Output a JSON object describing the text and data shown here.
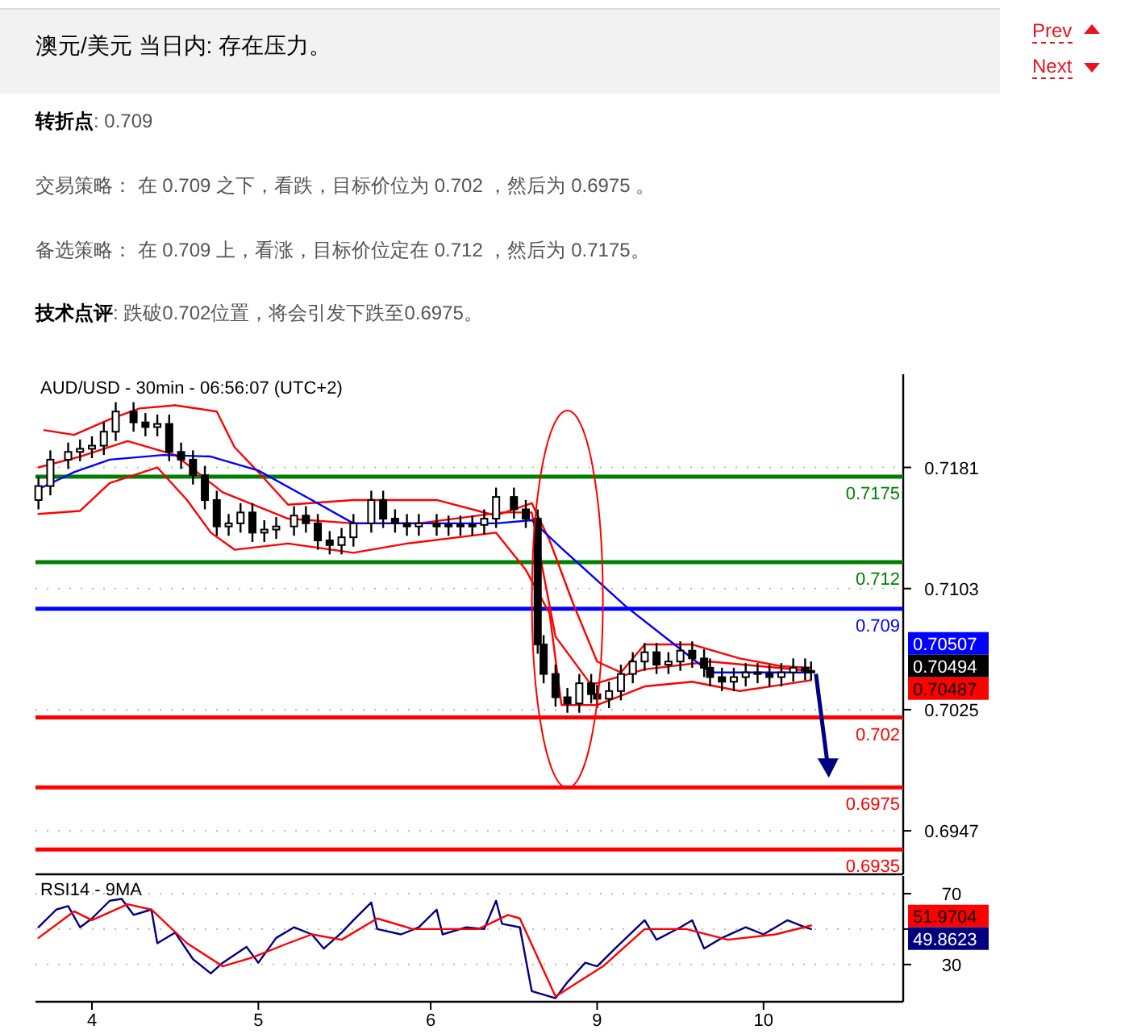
{
  "chart_data": [
    {
      "type": "other",
      "title": "澳元/美元 当日内: 存在压力。",
      "annotations": [
        "**转折点**: 0.709",
        "交易策略： 在 0.709 之下，看跌，目标价位为 0.702 ，然后为 0.6975 。",
        "备选策略： 在 0.709 上，看涨，目标价位定在 0.712 ，然后为 0.7175。",
        "**技术点评**: 跌破0.702位置，将会引发下跌至0.6975。",
        "Prev",
        "Next"
      ]
    },
    {
      "type": "candlestick",
      "title": "AUD/USD - 30min - 06:56:07 (UTC+2)",
      "categories": [
        null,
        null,
        null,
        null,
        null,
        null,
        null,
        null,
        null,
        null,
        null,
        null,
        null,
        null,
        null,
        null,
        null,
        null,
        null,
        null,
        null,
        null,
        null,
        null,
        null,
        null,
        null,
        null,
        null,
        null,
        null,
        null,
        null,
        null,
        null,
        null,
        null,
        null,
        null,
        null,
        null,
        null,
        null,
        null,
        null,
        null,
        null,
        null,
        null,
        null,
        null,
        null,
        null,
        null,
        null,
        null,
        null,
        null,
        null,
        null,
        null,
        null,
        null,
        null,
        null,
        null,
        null,
        null,
        null,
        null,
        null,
        null,
        null,
        null,
        null,
        null,
        null,
        null,
        null,
        null,
        null,
        null,
        null,
        null,
        null,
        null,
        null,
        null,
        null,
        null,
        null,
        null,
        null,
        null,
        null,
        null,
        null,
        null,
        null,
        null,
        null,
        null,
        null,
        null,
        null,
        null,
        null,
        null,
        null,
        null,
        null,
        null,
        null,
        null,
        null,
        null,
        null,
        null,
        null,
        null,
        null,
        null,
        null,
        null,
        null,
        null,
        null,
        null,
        null,
        null,
        null,
        null,
        null,
        null,
        null,
        null,
        null,
        null,
        null,
        null,
        null,
        null,
        null,
        null,
        null,
        null
      ],
      "ohlc": [
        [
          0.716,
          0.7175,
          0.7154,
          0.7169
        ],
        null,
        [
          0.7169,
          0.7192,
          0.7163,
          0.7186
        ],
        null,
        null,
        [
          0.7186,
          0.7197,
          0.718,
          0.7191
        ],
        null,
        [
          0.7191,
          0.7199,
          0.7185,
          0.7193
        ],
        null,
        [
          0.7193,
          0.7201,
          0.7187,
          0.7195
        ],
        null,
        [
          0.7195,
          0.721,
          0.7189,
          0.7204
        ],
        null,
        [
          0.7204,
          0.7223,
          0.7198,
          0.7217
        ],
        null,
        null,
        [
          0.7217,
          0.7223,
          0.7204,
          0.721
        ],
        null,
        [
          0.721,
          0.7216,
          0.7201,
          0.7207
        ],
        null,
        [
          0.7207,
          0.7215,
          0.7201,
          0.7209
        ],
        null,
        [
          0.7209,
          0.7215,
          0.7185,
          0.7191
        ],
        null,
        [
          0.7191,
          0.7197,
          0.718,
          0.7186
        ],
        null,
        [
          0.7186,
          0.7192,
          0.717,
          0.7176
        ],
        null,
        [
          0.7176,
          0.7182,
          0.7154,
          0.716
        ],
        null,
        [
          0.716,
          0.7166,
          0.7137,
          0.7143
        ],
        null,
        [
          0.7143,
          0.7151,
          0.7137,
          0.7145
        ],
        null,
        [
          0.7145,
          0.7158,
          0.7139,
          0.7152
        ],
        null,
        [
          0.7152,
          0.7158,
          0.7133,
          0.7139
        ],
        null,
        [
          0.7139,
          0.7147,
          0.7133,
          0.7141
        ],
        null,
        [
          0.7141,
          0.7149,
          0.7135,
          0.7143
        ],
        null,
        null,
        [
          0.7143,
          0.7156,
          0.7137,
          0.715
        ],
        null,
        [
          0.715,
          0.7156,
          0.7139,
          0.7145
        ],
        null,
        [
          0.7145,
          0.7151,
          0.7128,
          0.7134
        ],
        null,
        [
          0.7134,
          0.714,
          0.7125,
          0.7131
        ],
        null,
        [
          0.7131,
          0.7142,
          0.7125,
          0.7136
        ],
        null,
        [
          0.7136,
          0.7151,
          0.713,
          0.7145
        ],
        null,
        null,
        [
          0.7145,
          0.7166,
          0.7139,
          0.716
        ],
        null,
        [
          0.716,
          0.7166,
          0.7142,
          0.7148
        ],
        null,
        [
          0.7148,
          0.7154,
          0.7139,
          0.7145
        ],
        null,
        [
          0.7145,
          0.7151,
          0.7137,
          0.7143
        ],
        null,
        [
          0.7143,
          0.7151,
          0.7137,
          0.7145
        ],
        null,
        null,
        [
          0.7145,
          0.7151,
          0.7137,
          0.7143
        ],
        null,
        [
          0.7143,
          0.715,
          0.7137,
          0.7144
        ],
        null,
        [
          0.7144,
          0.715,
          0.7137,
          0.7143
        ],
        null,
        [
          0.7143,
          0.715,
          0.7137,
          0.7144
        ],
        null,
        [
          0.7144,
          0.7154,
          0.7138,
          0.7148
        ],
        null,
        [
          0.7148,
          0.7168,
          0.7142,
          0.7162
        ],
        null,
        null,
        [
          0.7162,
          0.7168,
          0.7148,
          0.7154
        ],
        null,
        [
          0.7154,
          0.716,
          0.7142,
          0.7148
        ],
        null,
        [
          0.7148,
          0.7154,
          0.7061,
          0.7067
        ],
        [
          0.7067,
          0.7073,
          0.7042,
          0.7048
        ],
        null,
        [
          0.7048,
          0.7054,
          0.7027,
          0.7033
        ],
        null,
        [
          0.7033,
          0.7039,
          0.7023,
          0.7029
        ],
        null,
        [
          0.7029,
          0.7048,
          0.7023,
          0.7042
        ],
        null,
        [
          0.7042,
          0.7048,
          0.7029,
          0.7035
        ],
        [
          0.7035,
          0.7041,
          0.7026,
          0.7032
        ],
        null,
        [
          0.7032,
          0.7043,
          0.7026,
          0.7037
        ],
        null,
        [
          0.7037,
          0.7054,
          0.7031,
          0.7048
        ],
        null,
        [
          0.7048,
          0.7062,
          0.7042,
          0.7056
        ],
        null,
        [
          0.7056,
          0.7068,
          0.705,
          0.7062
        ],
        null,
        [
          0.7062,
          0.7068,
          0.7048,
          0.7054
        ],
        null,
        [
          0.7054,
          0.7062,
          0.7048,
          0.7056
        ],
        null,
        [
          0.7056,
          0.7069,
          0.705,
          0.7063
        ],
        null,
        [
          0.7063,
          0.7069,
          0.7052,
          0.7058
        ],
        null,
        [
          0.7058,
          0.7064,
          0.7046,
          0.7052
        ],
        [
          0.7052,
          0.7058,
          0.704,
          0.7046
        ],
        null,
        [
          0.7046,
          0.7052,
          0.7037,
          0.7043
        ],
        null,
        [
          0.7043,
          0.7052,
          0.7037,
          0.7046
        ],
        null,
        [
          0.7046,
          0.7055,
          0.704,
          0.7049
        ],
        null,
        [
          0.7049,
          0.7055,
          0.7042,
          0.7048
        ],
        null,
        [
          0.7048,
          0.7054,
          0.704,
          0.7046
        ],
        null,
        [
          0.7046,
          0.7055,
          0.704,
          0.7049
        ],
        null,
        [
          0.7049,
          0.7058,
          0.7043,
          0.7052
        ],
        null,
        [
          0.7052,
          0.7058,
          0.7044,
          0.705
        ],
        [
          0.705,
          0.7056,
          0.7044,
          0.7049
        ],
        null,
        null,
        null,
        null,
        null,
        null,
        null,
        null,
        null,
        null,
        null,
        null,
        null,
        null,
        null
      ],
      "series": [
        {
          "type": "line",
          "color": "#ff0000",
          "values": [
            null,
            0.7205,
            null,
            null,
            null,
            null,
            0.7202,
            null,
            null,
            null,
            null,
            null,
            0.7212,
            null,
            null,
            null,
            null,
            0.7219,
            null,
            null,
            null,
            null,
            null,
            0.7221,
            null,
            null,
            null,
            null,
            null,
            null,
            0.7217,
            null,
            null,
            0.7194,
            null,
            null,
            null,
            0.7178,
            null,
            null,
            null,
            null,
            0.7157,
            null,
            null,
            null,
            null,
            null,
            null,
            null,
            null,
            null,
            null,
            0.716,
            null,
            null,
            null,
            null,
            null,
            null,
            null,
            null,
            null,
            null,
            null,
            null,
            null,
            0.716,
            null,
            null,
            null,
            null,
            null,
            null,
            null,
            null,
            null,
            0.715,
            null,
            null,
            null,
            null,
            null,
            0.7158,
            null,
            null,
            0.7134,
            null,
            null,
            null,
            0.7093,
            null,
            null,
            null,
            0.7056,
            null,
            null,
            null,
            0.7049,
            null,
            null,
            null,
            0.7067,
            null,
            null,
            null,
            null,
            null,
            null,
            null,
            0.7067,
            null,
            null,
            null,
            null,
            null,
            null,
            null,
            0.7058,
            null,
            null,
            null,
            null,
            null,
            null,
            0.7053,
            null,
            null,
            null,
            null,
            0.7052,
            null,
            null,
            null,
            null,
            null,
            null,
            null,
            null,
            null,
            null,
            null,
            null,
            null,
            null,
            null
          ]
        },
        {
          "type": "line",
          "color": "#ff0000",
          "values": [
            0.7151,
            null,
            null,
            null,
            null,
            null,
            null,
            0.7153,
            null,
            null,
            null,
            null,
            0.7171,
            null,
            null,
            null,
            null,
            null,
            null,
            null,
            0.7181,
            null,
            null,
            null,
            null,
            0.716,
            null,
            null,
            null,
            0.7139,
            null,
            null,
            null,
            0.7128,
            null,
            null,
            null,
            null,
            null,
            null,
            null,
            null,
            0.7132,
            null,
            null,
            null,
            null,
            null,
            null,
            null,
            null,
            null,
            null,
            0.7126,
            null,
            null,
            null,
            null,
            null,
            null,
            null,
            null,
            0.7132,
            null,
            null,
            null,
            null,
            null,
            null,
            null,
            null,
            null,
            null,
            null,
            null,
            null,
            null,
            0.7139,
            null,
            null,
            null,
            null,
            0.7115,
            null,
            null,
            null,
            0.7087,
            null,
            0.7028,
            null,
            null,
            null,
            null,
            null,
            0.7028,
            null,
            null,
            null,
            null,
            null,
            null,
            null,
            0.704,
            null,
            null,
            null,
            null,
            null,
            null,
            null,
            0.7043,
            null,
            null,
            null,
            null,
            null,
            null,
            null,
            0.7037,
            null,
            null,
            null,
            null,
            null,
            null,
            0.7041,
            null,
            null,
            null,
            null,
            0.7044,
            null,
            null,
            null,
            null,
            null,
            null,
            null,
            null,
            null,
            null,
            null,
            null,
            null,
            null,
            null
          ]
        },
        {
          "type": "line",
          "color": "#ff0000",
          "values": [
            0.7181,
            null,
            null,
            null,
            null,
            null,
            null,
            0.7188,
            null,
            null,
            null,
            null,
            null,
            null,
            null,
            0.7198,
            null,
            null,
            null,
            null,
            null,
            null,
            null,
            0.7189,
            null,
            null,
            null,
            null,
            null,
            null,
            null,
            0.7165,
            null,
            null,
            null,
            null,
            null,
            null,
            null,
            null,
            null,
            null,
            0.7148,
            null,
            null,
            null,
            null,
            null,
            null,
            null,
            null,
            null,
            null,
            0.7145,
            null,
            null,
            null,
            null,
            null,
            null,
            null,
            null,
            null,
            null,
            0.7145,
            null,
            null,
            null,
            null,
            null,
            null,
            null,
            null,
            null,
            null,
            null,
            null,
            null,
            0.7152,
            null,
            null,
            null,
            null,
            0.7152,
            null,
            null,
            null,
            0.7072,
            null,
            null,
            null,
            null,
            null,
            0.7041,
            null,
            null,
            null,
            null,
            null,
            null,
            null,
            null,
            0.7051,
            null,
            null,
            null,
            null,
            null,
            null,
            null,
            null,
            null,
            null,
            0.7056,
            null,
            null,
            null,
            null,
            null,
            null,
            null,
            null,
            null,
            null,
            null,
            null,
            null,
            null,
            null,
            null,
            0.705,
            null,
            null,
            null,
            null,
            null,
            null,
            null,
            null,
            null,
            null,
            null,
            null,
            null,
            null,
            null
          ]
        },
        {
          "type": "line",
          "color": "#0000ff",
          "values": [
            0.7167,
            null,
            null,
            null,
            null,
            null,
            0.7178,
            null,
            null,
            null,
            null,
            null,
            0.7186,
            null,
            null,
            null,
            null,
            null,
            null,
            null,
            null,
            0.7189,
            null,
            null,
            null,
            null,
            null,
            null,
            null,
            0.7188,
            null,
            null,
            null,
            null,
            null,
            null,
            null,
            0.7179,
            null,
            null,
            null,
            null,
            null,
            null,
            null,
            null,
            0.716,
            null,
            null,
            null,
            null,
            null,
            null,
            0.7145,
            null,
            null,
            null,
            null,
            null,
            null,
            null,
            null,
            0.7145,
            null,
            null,
            null,
            null,
            null,
            null,
            null,
            null,
            null,
            null,
            null,
            null,
            null,
            null,
            0.7145,
            null,
            null,
            null,
            null,
            null,
            0.7147,
            null,
            null,
            null,
            null,
            0.7129,
            null,
            null,
            null,
            null,
            null,
            null,
            null,
            null,
            null,
            null,
            0.7091,
            null,
            null,
            null,
            null,
            null,
            null,
            null,
            0.7067,
            null,
            null,
            null,
            null,
            null,
            0.7049,
            null,
            null,
            null,
            null,
            null,
            null,
            null,
            null,
            null,
            null,
            null,
            null,
            null,
            null,
            null,
            null,
            0.7049,
            null,
            null,
            null,
            null,
            null,
            null,
            null,
            null,
            null,
            null,
            null,
            null,
            null,
            null,
            null
          ]
        }
      ],
      "ylim": [
        0.6919,
        0.7241
      ],
      "yticks": [
        0.7181,
        0.7103,
        0.7025,
        0.6947
      ],
      "grid": "y",
      "tick_labels": "y",
      "ref_lines": [
        {
          "axis": "y",
          "value": 0.7175,
          "label": "0.7175",
          "color": "#008000"
        },
        {
          "axis": "y",
          "value": 0.712,
          "label": "0.712",
          "color": "#008000"
        },
        {
          "axis": "y",
          "value": 0.709,
          "label": "0.709",
          "color": "#0000ff"
        },
        {
          "axis": "y",
          "value": 0.702,
          "label": "0.702",
          "color": "#ff0000"
        },
        {
          "axis": "y",
          "value": 0.6975,
          "label": "0.6975",
          "color": "#ff0000"
        },
        {
          "axis": "y",
          "value": 0.6935,
          "label": "0.6935",
          "color": "#ff0000"
        }
      ],
      "annotations": [
        "0.70507",
        "0.70494",
        "0.70487"
      ]
    },
    {
      "type": "line",
      "title": "RSI14 - 9MA",
      "categories": [
        null,
        null,
        null,
        null,
        null,
        null,
        null,
        null,
        null,
        "4",
        null,
        null,
        null,
        null,
        null,
        null,
        null,
        null,
        null,
        null,
        null,
        null,
        null,
        null,
        null,
        null,
        null,
        null,
        null,
        null,
        null,
        null,
        null,
        null,
        null,
        null,
        null,
        "5",
        null,
        null,
        null,
        null,
        null,
        null,
        null,
        null,
        null,
        null,
        null,
        null,
        null,
        null,
        null,
        null,
        null,
        null,
        null,
        null,
        null,
        null,
        null,
        null,
        null,
        null,
        null,
        null,
        "6",
        null,
        null,
        null,
        null,
        null,
        null,
        null,
        null,
        null,
        null,
        null,
        null,
        null,
        null,
        null,
        null,
        null,
        null,
        null,
        null,
        null,
        null,
        null,
        null,
        null,
        null,
        null,
        "9",
        null,
        null,
        null,
        null,
        null,
        null,
        null,
        null,
        null,
        null,
        null,
        null,
        null,
        null,
        null,
        null,
        null,
        null,
        null,
        null,
        null,
        null,
        null,
        null,
        null,
        null,
        null,
        "10",
        null,
        null,
        null,
        null,
        null,
        null,
        null,
        null,
        null,
        null,
        null,
        null,
        null,
        null,
        null,
        null,
        null,
        null,
        null,
        null,
        null,
        null,
        null
      ],
      "series": [
        {
          "color": "#000080",
          "values": [
            51,
            null,
            null,
            61,
            null,
            63,
            null,
            51,
            null,
            56,
            null,
            null,
            66,
            null,
            67,
            null,
            58,
            null,
            null,
            61,
            42,
            null,
            null,
            48,
            null,
            null,
            33,
            null,
            null,
            25,
            null,
            31,
            null,
            null,
            null,
            40,
            null,
            31,
            null,
            null,
            45,
            null,
            null,
            51,
            null,
            null,
            47,
            null,
            39,
            null,
            null,
            48,
            null,
            55,
            null,
            null,
            65,
            50,
            null,
            null,
            null,
            47,
            null,
            null,
            51,
            null,
            null,
            61,
            47,
            null,
            null,
            null,
            51,
            null,
            null,
            50,
            null,
            66,
            53,
            null,
            null,
            51,
            null,
            15,
            null,
            null,
            null,
            11,
            null,
            20,
            null,
            null,
            31,
            null,
            29,
            null,
            null,
            39,
            null,
            null,
            null,
            null,
            55,
            null,
            44,
            null,
            null,
            null,
            51,
            null,
            55,
            null,
            39,
            null,
            null,
            45,
            null,
            null,
            null,
            51,
            null,
            null,
            47,
            null,
            null,
            null,
            55,
            null,
            null,
            51,
            50,
            null,
            null,
            null,
            null,
            null,
            null,
            null,
            null,
            null,
            null,
            null,
            null,
            null,
            null,
            null
          ]
        },
        {
          "color": "#ff0000",
          "values": [
            45,
            null,
            null,
            null,
            null,
            null,
            60,
            null,
            null,
            55,
            null,
            null,
            null,
            null,
            null,
            64,
            null,
            null,
            null,
            61,
            null,
            null,
            null,
            null,
            null,
            42,
            null,
            null,
            null,
            null,
            null,
            29,
            null,
            null,
            null,
            null,
            34,
            null,
            null,
            null,
            null,
            null,
            42,
            null,
            null,
            null,
            47,
            null,
            null,
            null,
            null,
            44,
            null,
            null,
            null,
            null,
            null,
            56,
            null,
            null,
            null,
            null,
            null,
            50,
            null,
            null,
            null,
            null,
            null,
            null,
            null,
            null,
            null,
            null,
            50,
            null,
            null,
            null,
            null,
            58,
            null,
            56,
            null,
            null,
            null,
            null,
            null,
            12,
            null,
            null,
            null,
            null,
            null,
            null,
            null,
            29,
            null,
            null,
            null,
            null,
            null,
            null,
            50,
            null,
            null,
            null,
            null,
            null,
            null,
            50,
            null,
            null,
            null,
            null,
            null,
            null,
            44,
            null,
            null,
            null,
            null,
            null,
            null,
            null,
            47,
            null,
            null,
            null,
            null,
            null,
            52,
            null,
            null,
            null,
            null,
            null,
            null,
            null,
            null,
            null,
            null,
            null,
            null,
            null,
            null,
            null
          ]
        }
      ],
      "ylim": [
        9,
        80
      ],
      "yticks": [
        70,
        {
          "value": 50,
          "label": null
        },
        30
      ],
      "grid": "y",
      "annotations": [
        "51.9704",
        "49.8623"
      ]
    }
  ]
}
